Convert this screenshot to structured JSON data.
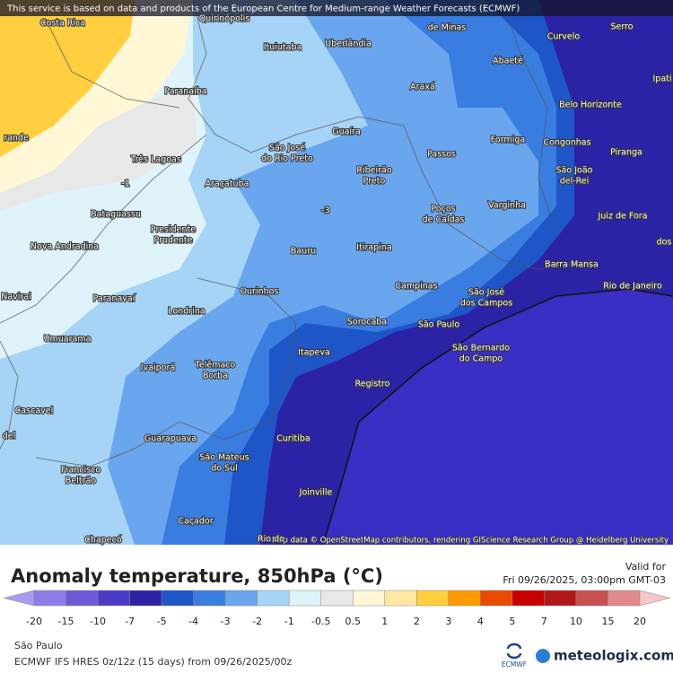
{
  "banner": "This service is based on data and products of the European Centre for Medium-range Weather Forecasts (ECMWF)",
  "map": {
    "labels": [
      [
        "Costa Rica"
      ],
      [
        "Quirinópolis"
      ],
      [
        "de Minas"
      ],
      [
        "Curvelo"
      ],
      [
        "Serro"
      ],
      [
        "Uberlândia"
      ],
      [
        "Ituiutaba"
      ],
      [
        "Abaeté"
      ],
      [
        "Ipati"
      ],
      [
        "Paranaíba"
      ],
      [
        "Araxá"
      ],
      [
        "Belo Horizonte"
      ],
      [
        "Guaíra"
      ],
      [
        "Formiga"
      ],
      [
        "Congonhas"
      ],
      [
        "rande"
      ],
      [
        "Três Lagoas"
      ],
      [
        "São José",
        "do Rio Preto"
      ],
      [
        "Passos"
      ],
      [
        "Piranga"
      ],
      [
        "São João",
        "del-Rei"
      ],
      [
        "Ribeirão",
        "Preto"
      ],
      [
        "Araçatuba"
      ],
      [
        "-1"
      ],
      [
        "-3"
      ],
      [
        "Varginha"
      ],
      [
        "Poços",
        "de Caldas"
      ],
      [
        "Juiz de Fora"
      ],
      [
        "Bataguassu"
      ],
      [
        "Presidente",
        "Prudente"
      ],
      [
        "dos"
      ],
      [
        "Nova Andradina"
      ],
      [
        "Bauru"
      ],
      [
        "Itirapina"
      ],
      [
        "Barra Mansa"
      ],
      [
        "Campinas"
      ],
      [
        "São José",
        "dos Campos"
      ],
      [
        "Rio de Janeiro"
      ],
      [
        "Navirai"
      ],
      [
        "Paranavaí"
      ],
      [
        "Ourinhos"
      ],
      [
        "Londrina"
      ],
      [
        "Sorocaba"
      ],
      [
        "São Paulo"
      ],
      [
        "Umuarama"
      ],
      [
        "São Bernardo",
        "do Campo"
      ],
      [
        "Itapeva"
      ],
      [
        "Ivaiporã"
      ],
      [
        "Telêmaco",
        "Borba"
      ],
      [
        "Registro"
      ],
      [
        "Cascavel"
      ],
      [
        "del"
      ],
      [
        "Guarapuava"
      ],
      [
        "Curitiba"
      ],
      [
        "São Mateus",
        "do Sul"
      ],
      [
        "Francisco",
        "Beltrão"
      ],
      [
        "Joinville"
      ],
      [
        "Caçador"
      ],
      [
        "Chapecó"
      ],
      [
        "Rio do"
      ]
    ],
    "attribution": "Map data © OpenStreetMap contributors, rendering GIScience Research Group @ Heidelberg University"
  },
  "legend": {
    "title": "Anomaly temperature, 850hPa (°C)",
    "valid_label": "Valid for",
    "valid_time": "Fri 09/26/2025, 03:00pm GMT-03",
    "ticks": [
      "-20",
      "-15",
      "-10",
      "-7",
      "-5",
      "-4",
      "-3",
      "-2",
      "-1",
      "-0.5",
      "0.5",
      "1",
      "2",
      "3",
      "4",
      "5",
      "7",
      "10",
      "15",
      "20"
    ],
    "colors": [
      "#a99cf0",
      "#8c7ee8",
      "#6a5ad8",
      "#4a3bc6",
      "#2d22a4",
      "#1e56c8",
      "#3a7de0",
      "#6aa6ee",
      "#a6d4f6",
      "#dff3fb",
      "#e8e8e8",
      "#fff7d6",
      "#ffe9a0",
      "#ffcf40",
      "#ff9a00",
      "#e84a00",
      "#c80000",
      "#b01818",
      "#c85050",
      "#e28a8a",
      "#f6c6c6"
    ]
  },
  "footer": {
    "location": "São Paulo",
    "model": "ECMWF IFS HRES 0z/12z (15 days) from 09/26/2025/00z",
    "ecmwf": "ECMWF",
    "brand": "meteologix.com"
  }
}
